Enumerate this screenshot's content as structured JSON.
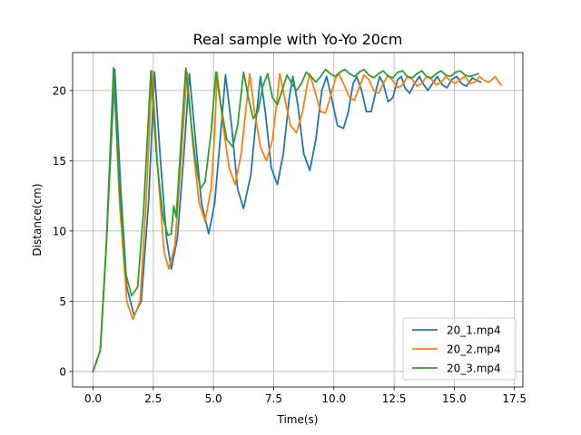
{
  "chart_data": {
    "type": "line",
    "title": "Real sample with Yo-Yo 20cm",
    "xlabel": "Time(s)",
    "ylabel": "Distance(cm)",
    "xlim": [
      -0.85,
      17.85
    ],
    "ylim": [
      -1.1,
      22.7
    ],
    "xticks": [
      0.0,
      2.5,
      5.0,
      7.5,
      10.0,
      12.5,
      15.0,
      17.5
    ],
    "xtick_labels": [
      "0.0",
      "2.5",
      "5.0",
      "7.5",
      "10.0",
      "12.5",
      "15.0",
      "17.5"
    ],
    "yticks": [
      0,
      5,
      10,
      15,
      20
    ],
    "ytick_labels": [
      "0",
      "5",
      "10",
      "15",
      "20"
    ],
    "grid": true,
    "legend_position": "lower-right",
    "series": [
      {
        "name": "20_1.mp4",
        "color": "#1f77b4",
        "points": [
          [
            0.0,
            0.0
          ],
          [
            0.3,
            1.5
          ],
          [
            0.55,
            9.0
          ],
          [
            0.9,
            21.5
          ],
          [
            1.15,
            13.0
          ],
          [
            1.4,
            6.0
          ],
          [
            1.7,
            4.0
          ],
          [
            2.0,
            5.0
          ],
          [
            2.3,
            12.0
          ],
          [
            2.55,
            21.3
          ],
          [
            2.8,
            15.0
          ],
          [
            3.05,
            9.5
          ],
          [
            3.25,
            7.3
          ],
          [
            3.5,
            9.5
          ],
          [
            3.75,
            15.0
          ],
          [
            4.0,
            21.2
          ],
          [
            4.25,
            16.5
          ],
          [
            4.5,
            12.0
          ],
          [
            4.8,
            9.8
          ],
          [
            5.05,
            12.0
          ],
          [
            5.3,
            17.0
          ],
          [
            5.5,
            21.1
          ],
          [
            5.75,
            17.5
          ],
          [
            6.0,
            13.0
          ],
          [
            6.25,
            11.6
          ],
          [
            6.55,
            14.0
          ],
          [
            6.8,
            18.5
          ],
          [
            6.95,
            21.0
          ],
          [
            7.15,
            18.5
          ],
          [
            7.4,
            14.5
          ],
          [
            7.65,
            13.3
          ],
          [
            7.9,
            15.5
          ],
          [
            8.15,
            19.5
          ],
          [
            8.3,
            21.0
          ],
          [
            8.5,
            19.0
          ],
          [
            8.75,
            15.5
          ],
          [
            9.0,
            14.3
          ],
          [
            9.25,
            16.5
          ],
          [
            9.5,
            20.0
          ],
          [
            9.7,
            21.0
          ],
          [
            9.9,
            19.5
          ],
          [
            10.15,
            17.5
          ],
          [
            10.4,
            17.3
          ],
          [
            10.6,
            18.5
          ],
          [
            10.8,
            20.5
          ],
          [
            10.95,
            21.0
          ],
          [
            11.15,
            20.0
          ],
          [
            11.35,
            18.5
          ],
          [
            11.55,
            18.5
          ],
          [
            11.75,
            20.0
          ],
          [
            11.9,
            21.0
          ],
          [
            12.05,
            20.5
          ],
          [
            12.25,
            19.2
          ],
          [
            12.45,
            19.5
          ],
          [
            12.65,
            20.8
          ],
          [
            12.8,
            21.0
          ],
          [
            12.95,
            20.2
          ],
          [
            13.15,
            19.8
          ],
          [
            13.35,
            20.5
          ],
          [
            13.55,
            21.0
          ],
          [
            13.7,
            20.5
          ],
          [
            13.9,
            20.0
          ],
          [
            14.1,
            20.5
          ],
          [
            14.3,
            21.0
          ],
          [
            14.5,
            20.4
          ],
          [
            14.7,
            20.2
          ],
          [
            14.9,
            20.8
          ],
          [
            15.1,
            21.0
          ],
          [
            15.3,
            20.5
          ],
          [
            15.5,
            20.3
          ],
          [
            15.75,
            20.9
          ],
          [
            15.95,
            20.7
          ],
          [
            16.1,
            20.6
          ]
        ]
      },
      {
        "name": "20_2.mp4",
        "color": "#ff7f0e",
        "points": [
          [
            0.0,
            0.0
          ],
          [
            0.3,
            1.5
          ],
          [
            0.55,
            9.0
          ],
          [
            0.85,
            21.4
          ],
          [
            1.1,
            12.0
          ],
          [
            1.4,
            5.0
          ],
          [
            1.65,
            3.7
          ],
          [
            1.95,
            5.0
          ],
          [
            2.2,
            12.0
          ],
          [
            2.45,
            21.4
          ],
          [
            2.7,
            14.0
          ],
          [
            2.95,
            8.5
          ],
          [
            3.15,
            7.3
          ],
          [
            3.4,
            9.0
          ],
          [
            3.65,
            15.0
          ],
          [
            3.9,
            21.3
          ],
          [
            4.15,
            16.0
          ],
          [
            4.4,
            12.0
          ],
          [
            4.65,
            10.7
          ],
          [
            4.9,
            13.0
          ],
          [
            5.05,
            17.0
          ],
          [
            5.15,
            21.3
          ],
          [
            5.4,
            17.5
          ],
          [
            5.65,
            14.5
          ],
          [
            5.9,
            13.3
          ],
          [
            6.15,
            15.5
          ],
          [
            6.4,
            19.5
          ],
          [
            6.5,
            21.2
          ],
          [
            6.7,
            18.5
          ],
          [
            6.95,
            16.0
          ],
          [
            7.2,
            15.0
          ],
          [
            7.45,
            16.5
          ],
          [
            7.65,
            19.5
          ],
          [
            7.75,
            21.2
          ],
          [
            7.95,
            19.5
          ],
          [
            8.2,
            17.5
          ],
          [
            8.45,
            17.0
          ],
          [
            8.7,
            18.5
          ],
          [
            8.9,
            20.5
          ],
          [
            9.0,
            21.2
          ],
          [
            9.2,
            20.0
          ],
          [
            9.45,
            18.5
          ],
          [
            9.65,
            18.4
          ],
          [
            9.85,
            19.5
          ],
          [
            10.05,
            20.8
          ],
          [
            10.2,
            21.2
          ],
          [
            10.4,
            20.5
          ],
          [
            10.65,
            19.5
          ],
          [
            10.85,
            19.3
          ],
          [
            11.05,
            20.2
          ],
          [
            11.25,
            21.1
          ],
          [
            11.45,
            20.8
          ],
          [
            11.65,
            20.0
          ],
          [
            11.85,
            19.8
          ],
          [
            12.05,
            20.5
          ],
          [
            12.25,
            21.1
          ],
          [
            12.45,
            20.7
          ],
          [
            12.65,
            20.2
          ],
          [
            12.85,
            20.4
          ],
          [
            13.05,
            21.0
          ],
          [
            13.25,
            20.8
          ],
          [
            13.45,
            20.3
          ],
          [
            13.65,
            20.5
          ],
          [
            13.85,
            21.0
          ],
          [
            14.05,
            20.8
          ],
          [
            14.25,
            20.4
          ],
          [
            14.45,
            20.6
          ],
          [
            14.65,
            21.0
          ],
          [
            14.85,
            20.7
          ],
          [
            15.05,
            20.5
          ],
          [
            15.25,
            20.8
          ],
          [
            15.45,
            21.0
          ],
          [
            15.65,
            20.5
          ],
          [
            15.85,
            20.6
          ],
          [
            16.05,
            21.0
          ],
          [
            16.25,
            20.7
          ],
          [
            16.45,
            20.6
          ],
          [
            16.7,
            21.0
          ],
          [
            16.85,
            20.6
          ],
          [
            16.95,
            20.4
          ]
        ]
      },
      {
        "name": "20_3.mp4",
        "color": "#2ca02c",
        "points": [
          [
            0.0,
            0.0
          ],
          [
            0.3,
            1.5
          ],
          [
            0.55,
            9.0
          ],
          [
            0.85,
            21.6
          ],
          [
            1.1,
            13.0
          ],
          [
            1.35,
            7.0
          ],
          [
            1.6,
            5.4
          ],
          [
            1.85,
            6.0
          ],
          [
            2.1,
            11.5
          ],
          [
            2.4,
            21.4
          ],
          [
            2.65,
            15.0
          ],
          [
            2.9,
            11.0
          ],
          [
            3.1,
            9.7
          ],
          [
            3.25,
            9.8
          ],
          [
            3.35,
            11.8
          ],
          [
            3.45,
            11.0
          ],
          [
            3.6,
            15.0
          ],
          [
            3.85,
            21.6
          ],
          [
            4.05,
            18.0
          ],
          [
            4.25,
            15.0
          ],
          [
            4.45,
            13.0
          ],
          [
            4.65,
            13.5
          ],
          [
            4.9,
            17.0
          ],
          [
            5.1,
            21.3
          ],
          [
            5.3,
            19.0
          ],
          [
            5.55,
            16.5
          ],
          [
            5.8,
            16.0
          ],
          [
            6.0,
            17.5
          ],
          [
            6.25,
            21.3
          ],
          [
            6.45,
            19.5
          ],
          [
            6.65,
            18.0
          ],
          [
            6.85,
            18.5
          ],
          [
            7.05,
            20.3
          ],
          [
            7.25,
            21.2
          ],
          [
            7.45,
            19.5
          ],
          [
            7.65,
            19.0
          ],
          [
            7.85,
            20.0
          ],
          [
            8.05,
            21.1
          ],
          [
            8.25,
            20.5
          ],
          [
            8.45,
            20.0
          ],
          [
            8.65,
            20.5
          ],
          [
            8.85,
            21.3
          ],
          [
            9.05,
            21.0
          ],
          [
            9.25,
            20.6
          ],
          [
            9.45,
            21.0
          ],
          [
            9.65,
            21.5
          ],
          [
            9.85,
            21.2
          ],
          [
            10.05,
            21.0
          ],
          [
            10.25,
            21.3
          ],
          [
            10.45,
            21.5
          ],
          [
            10.65,
            21.2
          ],
          [
            10.85,
            21.0
          ],
          [
            11.05,
            21.3
          ],
          [
            11.25,
            21.5
          ],
          [
            11.45,
            21.1
          ],
          [
            11.65,
            20.9
          ],
          [
            11.85,
            21.2
          ],
          [
            12.05,
            21.4
          ],
          [
            12.25,
            21.0
          ],
          [
            12.45,
            20.9
          ],
          [
            12.65,
            21.3
          ],
          [
            12.85,
            21.4
          ],
          [
            13.05,
            21.0
          ],
          [
            13.25,
            20.9
          ],
          [
            13.45,
            21.2
          ],
          [
            13.65,
            21.4
          ],
          [
            13.85,
            21.0
          ],
          [
            14.05,
            20.9
          ],
          [
            14.25,
            21.2
          ],
          [
            14.45,
            21.4
          ],
          [
            14.65,
            21.1
          ],
          [
            14.85,
            21.0
          ],
          [
            15.05,
            21.3
          ],
          [
            15.25,
            21.4
          ],
          [
            15.45,
            21.1
          ],
          [
            15.65,
            21.0
          ],
          [
            15.85,
            21.1
          ],
          [
            16.0,
            21.2
          ]
        ]
      }
    ]
  }
}
